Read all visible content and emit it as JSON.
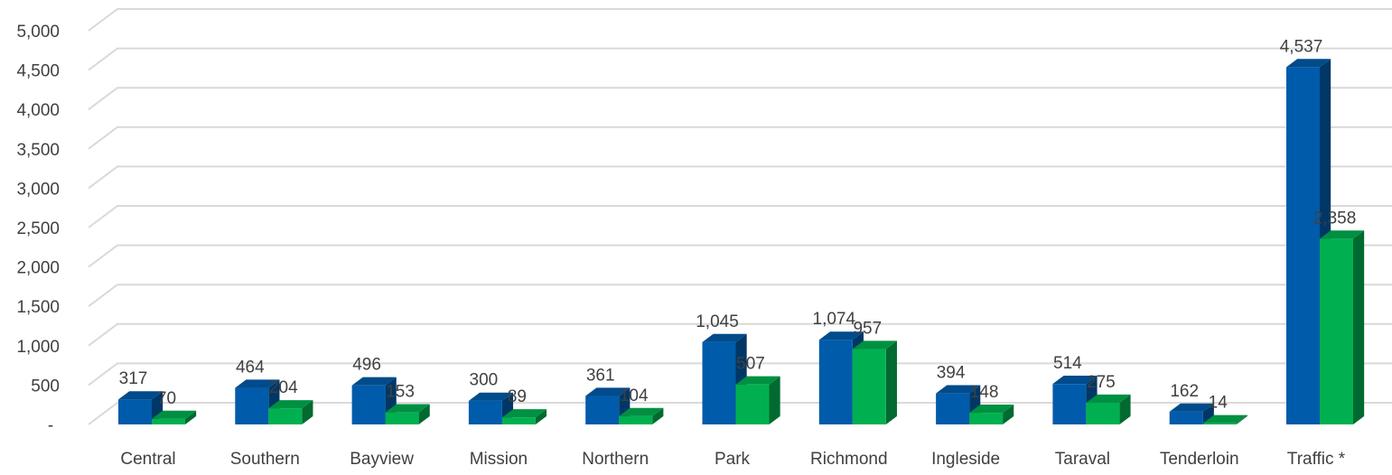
{
  "chart_data": {
    "type": "bar",
    "categories": [
      "Central",
      "Southern",
      "Bayview",
      "Mission",
      "Northern",
      "Park",
      "Richmond",
      "Ingleside",
      "Taraval",
      "Tenderloin",
      "Traffic *"
    ],
    "series": [
      {
        "values": [
          317,
          464,
          496,
          300,
          361,
          1045,
          1074,
          394,
          514,
          162,
          4537
        ],
        "labels": [
          "317",
          "464",
          "496",
          "300",
          "361",
          "1,045",
          "1,074",
          "394",
          "514",
          "162",
          "4,537"
        ],
        "color": "#005BAA"
      },
      {
        "values": [
          70,
          204,
          153,
          89,
          104,
          507,
          957,
          148,
          275,
          14,
          2358
        ],
        "labels": [
          "70",
          "204",
          "153",
          "89",
          "104",
          "507",
          "957",
          "148",
          "275",
          "14",
          "2,358"
        ],
        "color": "#00B050"
      }
    ],
    "yticks": [
      "-",
      "500",
      "1,000",
      "1,500",
      "2,000",
      "2,500",
      "3,000",
      "3,500",
      "4,000",
      "4,500",
      "5,000"
    ],
    "ylim": [
      0,
      5000
    ],
    "grid": true,
    "style": "3d-clustered-column"
  }
}
